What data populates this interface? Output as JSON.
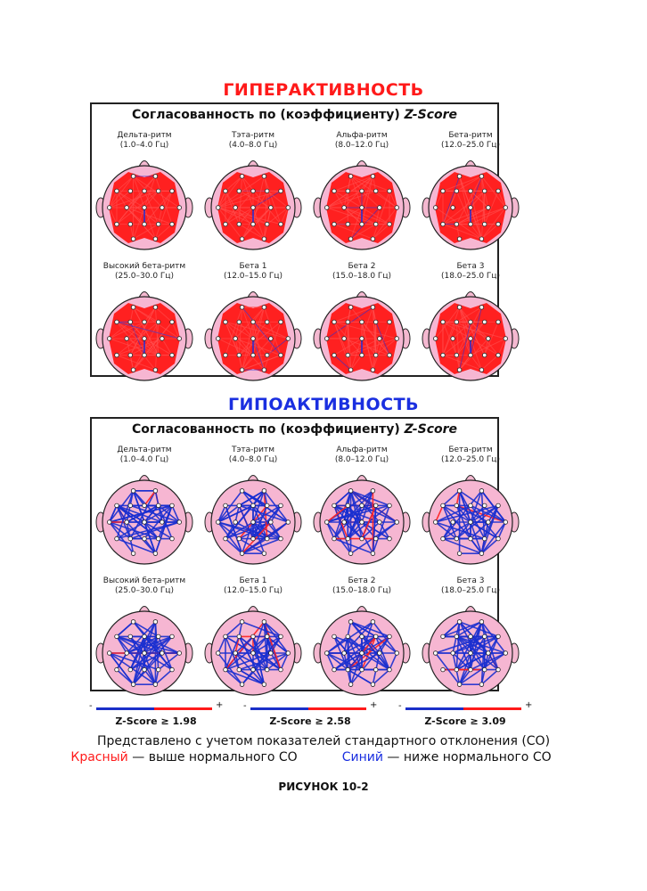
{
  "hyper": {
    "title": "ГИПЕРАКТИВНОСТЬ",
    "title_color": "#ff1a1a",
    "panel_title": "Согласованность по (коэффициенту)",
    "panel_title_em": "Z-Score",
    "line_color": "#ff1a1a",
    "bands": [
      {
        "name": "Дельта-ритм",
        "range": "(1.0–4.0 Гц)"
      },
      {
        "name": "Тэта-ритм",
        "range": "(4.0–8.0 Гц)"
      },
      {
        "name": "Альфа-ритм",
        "range": "(8.0–12.0 Гц)"
      },
      {
        "name": "Бета-ритм",
        "range": "(12.0–25.0 Гц)"
      },
      {
        "name": "Высокий бета-ритм",
        "range": "(25.0–30.0 Гц)"
      },
      {
        "name": "Бета 1",
        "range": "(12.0–15.0 Гц)"
      },
      {
        "name": "Бета 2",
        "range": "(15.0–18.0 Гц)"
      },
      {
        "name": "Бета 3",
        "range": "(18.0–25.0 Гц)"
      }
    ]
  },
  "hypo": {
    "title": "ГИПОАКТИВНОСТЬ",
    "title_color": "#1a2fe0",
    "panel_title": "Согласованность по (коэффициенту)",
    "panel_title_em": "Z-Score",
    "line_color": "#1a2fd0",
    "bands": [
      {
        "name": "Дельта-ритм",
        "range": "(1.0–4.0 Гц)"
      },
      {
        "name": "Тэта-ритм",
        "range": "(4.0–8.0 Гц)"
      },
      {
        "name": "Альфа-ритм",
        "range": "(8.0–12.0 Гц)"
      },
      {
        "name": "Бета-ритм",
        "range": "(12.0–25.0 Гц)"
      },
      {
        "name": "Высокий бета-ритм",
        "range": "(25.0–30.0 Гц)"
      },
      {
        "name": "Бета 1",
        "range": "(12.0–15.0 Гц)"
      },
      {
        "name": "Бета 2",
        "range": "(15.0–18.0 Гц)"
      },
      {
        "name": "Бета 3",
        "range": "(18.0–25.0 Гц)"
      }
    ]
  },
  "legend": {
    "minus": "-",
    "plus": "+",
    "thresholds": [
      "Z-Score ≥ 1.98",
      "Z-Score ≥ 2.58",
      "Z-Score ≥ 3.09"
    ]
  },
  "note": {
    "line1": "Представлено с учетом показателей стандартного отклонения (СО)",
    "red_word": "Красный",
    "red_text": " — выше нормального СО",
    "blue_word": "Синий",
    "blue_text": " — ниже нормального СО",
    "red_color": "#ff1a1a",
    "blue_color": "#1a2fe0"
  },
  "figure_label": "РИСУНОК 10-2"
}
